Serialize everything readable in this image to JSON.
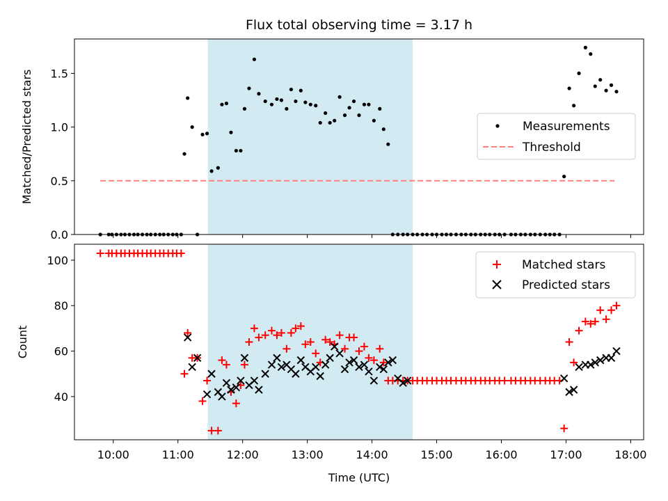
{
  "title": "Flux total observing time = 3.17 h",
  "colors": {
    "measurements": "#000000",
    "threshold": "#ff7f7f",
    "matched": "#ff0000",
    "predicted": "#000000",
    "span": "#add8e6"
  },
  "chart_data": [
    {
      "type": "scatter",
      "panel": "top",
      "ylabel": "Matched/Predicted stars",
      "xlim": [
        9.4,
        18.2
      ],
      "ylim": [
        0,
        1.82
      ],
      "yticks": [
        0,
        0.5,
        1.0,
        1.5
      ],
      "ytick_labels": [
        "0.0",
        "0.5",
        "1.0",
        "1.5"
      ],
      "shaded_span": [
        11.46,
        14.63
      ],
      "legend": {
        "position": "center-right",
        "entries": [
          "Measurements",
          "Threshold"
        ]
      },
      "threshold": {
        "name": "Threshold",
        "y": 0.5,
        "x": [
          9.8,
          17.75
        ]
      },
      "series": [
        {
          "name": "Measurements",
          "x": [
            9.8,
            9.93,
            9.98,
            10.05,
            10.12,
            10.18,
            10.25,
            10.32,
            10.38,
            10.45,
            10.52,
            10.58,
            10.65,
            10.72,
            10.78,
            10.85,
            10.92,
            10.98,
            11.05,
            11.1,
            11.15,
            11.22,
            11.3,
            11.38,
            11.45,
            11.52,
            11.62,
            11.68,
            11.75,
            11.82,
            11.9,
            11.97,
            12.03,
            12.1,
            12.18,
            12.25,
            12.35,
            12.45,
            12.53,
            12.6,
            12.68,
            12.75,
            12.82,
            12.9,
            12.97,
            13.05,
            13.13,
            13.2,
            13.28,
            13.35,
            13.42,
            13.5,
            13.58,
            13.65,
            13.72,
            13.8,
            13.88,
            13.95,
            14.03,
            14.12,
            14.18,
            14.25,
            14.32,
            14.4,
            14.48,
            14.55,
            14.63,
            14.7,
            14.78,
            14.85,
            14.93,
            15.0,
            15.08,
            15.15,
            15.22,
            15.3,
            15.38,
            15.45,
            15.53,
            15.6,
            15.68,
            15.75,
            15.82,
            15.9,
            15.97,
            16.05,
            16.15,
            16.22,
            16.3,
            16.37,
            16.45,
            16.52,
            16.6,
            16.68,
            16.75,
            16.82,
            16.9,
            16.97,
            17.05,
            17.12,
            17.2,
            17.3,
            17.38,
            17.45,
            17.53,
            17.62,
            17.7,
            17.78
          ],
          "y": [
            0,
            0,
            0,
            0,
            0,
            0,
            0,
            0,
            0,
            0,
            0,
            0,
            0,
            0,
            0,
            0,
            0,
            0,
            0,
            0.75,
            1.27,
            1.0,
            0,
            0.93,
            0.94,
            0.59,
            0.62,
            1.21,
            1.22,
            0.95,
            0.78,
            0.78,
            1.17,
            1.36,
            1.63,
            1.31,
            1.24,
            1.21,
            1.26,
            1.25,
            1.17,
            1.35,
            1.24,
            1.34,
            1.23,
            1.21,
            1.2,
            1.04,
            1.13,
            1.04,
            1.06,
            1.28,
            1.11,
            1.18,
            1.24,
            1.11,
            1.21,
            1.21,
            1.06,
            1.17,
            0.98,
            0.84,
            0,
            0,
            0,
            0,
            0,
            0,
            0,
            0,
            0,
            0,
            0,
            0,
            0,
            0,
            0,
            0,
            0,
            0,
            0,
            0,
            0,
            0,
            0,
            0,
            0,
            0,
            0,
            0,
            0,
            0,
            0,
            0,
            0,
            0,
            0,
            0.54,
            1.36,
            1.2,
            1.5,
            1.74,
            1.68,
            1.38,
            1.44,
            1.34,
            1.39,
            1.33
          ]
        }
      ]
    },
    {
      "type": "scatter",
      "panel": "bottom",
      "xlabel": "Time (UTC)",
      "ylabel": "Count",
      "xlim": [
        9.4,
        18.2
      ],
      "ylim": [
        21,
        107
      ],
      "yticks": [
        40,
        60,
        80,
        100
      ],
      "xticks": [
        10,
        11,
        12,
        13,
        14,
        15,
        16,
        17,
        18
      ],
      "xtick_labels": [
        "10:00",
        "11:00",
        "12:00",
        "13:00",
        "14:00",
        "15:00",
        "16:00",
        "17:00",
        "18:00"
      ],
      "shaded_span": [
        11.46,
        14.63
      ],
      "legend": {
        "position": "top-right",
        "entries": [
          "Matched stars",
          "Predicted stars"
        ]
      },
      "series": [
        {
          "name": "Matched stars",
          "marker": "+",
          "x": [
            9.8,
            9.93,
            9.98,
            10.05,
            10.12,
            10.18,
            10.25,
            10.32,
            10.38,
            10.45,
            10.52,
            10.58,
            10.65,
            10.72,
            10.78,
            10.85,
            10.92,
            10.98,
            11.05,
            11.1,
            11.15,
            11.22,
            11.3,
            11.38,
            11.45,
            11.52,
            11.62,
            11.68,
            11.75,
            11.82,
            11.9,
            11.97,
            12.03,
            12.1,
            12.18,
            12.25,
            12.35,
            12.45,
            12.53,
            12.6,
            12.68,
            12.75,
            12.82,
            12.9,
            12.97,
            13.05,
            13.13,
            13.2,
            13.28,
            13.35,
            13.42,
            13.5,
            13.58,
            13.65,
            13.72,
            13.8,
            13.88,
            13.95,
            14.03,
            14.12,
            14.18,
            14.25,
            14.32,
            14.4,
            14.48,
            14.55,
            14.63,
            14.7,
            14.78,
            14.85,
            14.93,
            15.0,
            15.08,
            15.15,
            15.22,
            15.3,
            15.38,
            15.45,
            15.53,
            15.6,
            15.68,
            15.75,
            15.82,
            15.9,
            15.97,
            16.05,
            16.15,
            16.22,
            16.3,
            16.37,
            16.45,
            16.52,
            16.6,
            16.68,
            16.75,
            16.82,
            16.9,
            16.97,
            17.05,
            17.12,
            17.2,
            17.3,
            17.38,
            17.45,
            17.53,
            17.62,
            17.7,
            17.78
          ],
          "y": [
            103,
            103,
            103,
            103,
            103,
            103,
            103,
            103,
            103,
            103,
            103,
            103,
            103,
            103,
            103,
            103,
            103,
            103,
            103,
            50,
            68,
            57,
            57,
            38,
            47,
            25,
            25,
            56,
            54,
            42,
            37,
            45,
            54,
            64,
            70,
            66,
            67,
            69,
            67,
            68,
            61,
            68,
            70,
            71,
            63,
            64,
            59,
            55,
            65,
            64,
            63,
            67,
            61,
            66,
            66,
            60,
            62,
            57,
            56,
            61,
            55,
            47,
            47,
            47,
            47,
            47,
            47,
            47,
            47,
            47,
            47,
            47,
            47,
            47,
            47,
            47,
            47,
            47,
            47,
            47,
            47,
            47,
            47,
            47,
            47,
            47,
            47,
            47,
            47,
            47,
            47,
            47,
            47,
            47,
            47,
            47,
            47,
            26,
            64,
            55,
            69,
            73,
            72,
            73,
            78,
            74,
            78,
            80
          ]
        },
        {
          "name": "Predicted stars",
          "marker": "x",
          "x": [
            11.15,
            11.22,
            11.3,
            11.45,
            11.52,
            11.62,
            11.68,
            11.75,
            11.82,
            11.9,
            11.97,
            12.03,
            12.1,
            12.18,
            12.25,
            12.35,
            12.45,
            12.53,
            12.6,
            12.68,
            12.75,
            12.82,
            12.9,
            12.97,
            13.05,
            13.13,
            13.2,
            13.28,
            13.35,
            13.42,
            13.5,
            13.58,
            13.65,
            13.72,
            13.8,
            13.88,
            13.95,
            14.03,
            14.12,
            14.18,
            14.25,
            14.32,
            14.4,
            14.48,
            14.55,
            16.97,
            17.05,
            17.12,
            17.2,
            17.3,
            17.38,
            17.45,
            17.53,
            17.62,
            17.7,
            17.78
          ],
          "y": [
            66,
            53,
            57,
            41,
            50,
            42,
            40,
            46,
            43,
            44,
            47,
            57,
            45,
            47,
            43,
            50,
            54,
            57,
            53,
            54,
            52,
            50,
            56,
            53,
            51,
            53,
            49,
            54,
            57,
            62,
            59,
            52,
            55,
            56,
            53,
            54,
            51,
            47,
            53,
            52,
            55,
            56,
            48,
            46,
            47,
            48,
            42,
            43,
            53,
            54,
            54,
            55,
            56,
            57,
            57,
            60
          ]
        }
      ]
    }
  ]
}
